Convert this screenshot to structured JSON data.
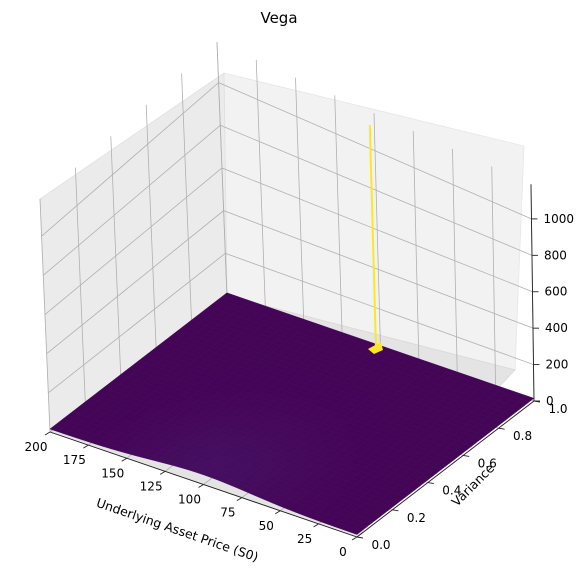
{
  "chart_data": {
    "type": "surface",
    "title": "Vega",
    "xlabel": "Underlying Asset Price (S0)",
    "ylabel": "Variance",
    "zlabel": "",
    "xlim": [
      0,
      200
    ],
    "ylim": [
      0,
      1
    ],
    "zlim": [
      0,
      1200
    ],
    "x_ticks": [
      "0",
      "25",
      "50",
      "75",
      "100",
      "125",
      "150",
      "175",
      "200"
    ],
    "y_ticks": [
      "0.0",
      "0.2",
      "0.4",
      "0.6",
      "0.8",
      "1.0"
    ],
    "z_ticks": [
      "0",
      "200",
      "400",
      "600",
      "800",
      "1000"
    ],
    "colormap": "viridis",
    "grid": true,
    "surface_description_values": {
      "base_level": 15,
      "max_base_level": 55,
      "base_peak_at_price": 100,
      "base_peak_at_variance": 0.05,
      "spike_price": 100,
      "spike_variance": 0.975,
      "spike_value": 1150
    },
    "colors": {
      "low": "#440154",
      "mid": "#3b528b",
      "high": "#fde725"
    }
  }
}
